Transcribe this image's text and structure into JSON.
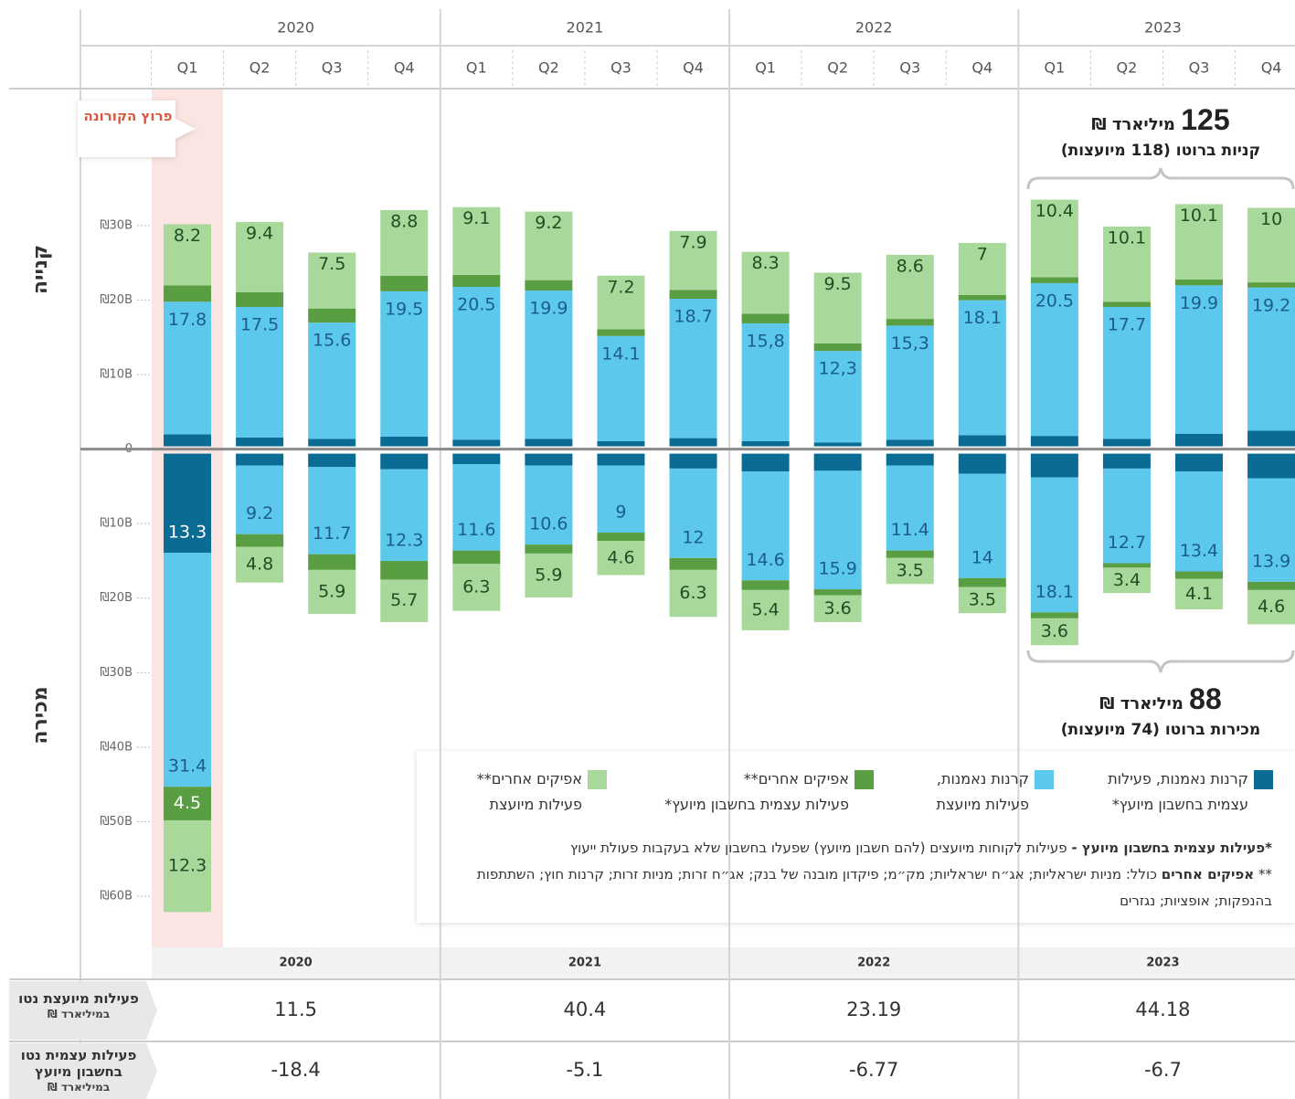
{
  "chart_data": {
    "type": "diverging_stacked_bar",
    "groups": [
      "2020",
      "2021",
      "2022",
      "2023"
    ],
    "categories": [
      "Q1",
      "Q2",
      "Q3",
      "Q4",
      "Q1",
      "Q2",
      "Q3",
      "Q4",
      "Q1",
      "Q2",
      "Q3",
      "Q4",
      "Q1",
      "Q2",
      "Q3",
      "Q4"
    ],
    "side_labels": {
      "buy": "קנייה",
      "sell": "מכירה"
    },
    "ylim": [
      -66,
      48
    ],
    "yticks": [
      {
        "value": 30,
        "label": "₪30B"
      },
      {
        "value": 20,
        "label": "₪20B"
      },
      {
        "value": 10,
        "label": "₪10B"
      },
      0,
      {
        "value": -10,
        "label": "₪10B"
      },
      {
        "value": -20,
        "label": "₪20B"
      },
      {
        "value": -30,
        "label": "₪30B"
      },
      {
        "value": -40,
        "label": "₪40B"
      },
      {
        "value": -50,
        "label": "₪50B"
      },
      {
        "value": -60,
        "label": "₪60B"
      }
    ],
    "series": [
      {
        "name": "קרנות נאמנות, פעילות\nעצמית בחשבון מיועץ*",
        "color": "#0a6b94",
        "label_color": "#ffffff",
        "values": [
          1.6,
          1.2,
          1.0,
          1.3,
          0.9,
          1.0,
          0.7,
          1.1,
          0.7,
          0.5,
          0.9,
          1.5,
          1.4,
          1.0,
          1.7,
          2.1
        ],
        "value_labels": [
          null,
          null,
          null,
          null,
          null,
          null,
          null,
          null,
          null,
          null,
          null,
          null,
          null,
          null,
          null,
          null
        ],
        "sell_values": [
          -13.3,
          -1.6,
          -1.8,
          -2.1,
          -1.4,
          -1.6,
          -1.6,
          -2.0,
          -2.4,
          -2.3,
          -1.6,
          -2.7,
          -3.2,
          -2.0,
          -2.4,
          -3.3
        ],
        "sell_value_labels": [
          "13.3",
          null,
          null,
          null,
          null,
          null,
          null,
          null,
          null,
          null,
          null,
          null,
          null,
          null,
          null,
          null
        ]
      },
      {
        "name": "קרנות נאמנות,\nפעילות מיועצת",
        "color": "#5bc8ec",
        "label_color": "#1b5e8a",
        "values": [
          17.8,
          17.5,
          15.6,
          19.5,
          20.5,
          19.9,
          14.1,
          18.7,
          15.8,
          12.3,
          15.3,
          18.1,
          20.5,
          17.7,
          19.9,
          19.2
        ],
        "value_labels": [
          "17.8",
          "17.5",
          "15.6",
          "19.5",
          "20.5",
          "19.9",
          "14.1",
          "18.7",
          "15,8",
          "12,3",
          "15,3",
          "18.1",
          "20.5",
          "17.7",
          "19.9",
          "19.2"
        ],
        "sell_values": [
          -31.4,
          -9.2,
          -11.7,
          -12.3,
          -11.6,
          -10.6,
          -9,
          -12,
          -14.6,
          -15.9,
          -11.4,
          -14,
          -18.1,
          -12.7,
          -13.4,
          -13.9
        ],
        "sell_value_labels": [
          "31.4",
          "9.2",
          "11.7",
          "12.3",
          "11.6",
          "10.6",
          "9",
          "12",
          "14.6",
          "15.9",
          "11.4",
          "14",
          "18.1",
          "12.7",
          "13.4",
          "13.9"
        ]
      },
      {
        "name": "אפיקים אחרים**\nפעילות עצמית בחשבון מיועץ*",
        "color": "#5a9e43",
        "label_color": "#ffffff",
        "values": [
          2.2,
          2.0,
          1.9,
          2.1,
          1.6,
          1.4,
          0.9,
          1.2,
          1.3,
          1.0,
          0.9,
          0.7,
          0.8,
          0.7,
          0.8,
          0.7
        ],
        "value_labels": [
          null,
          null,
          null,
          null,
          null,
          null,
          null,
          null,
          null,
          null,
          null,
          null,
          null,
          null,
          null,
          null
        ],
        "sell_values": [
          -4.5,
          -1.7,
          -2.1,
          -2.5,
          -1.8,
          -1.2,
          -1.1,
          -1.6,
          -1.3,
          -0.8,
          -1.0,
          -1.2,
          -0.8,
          -0.6,
          -1.0,
          -1.1
        ],
        "sell_value_labels": [
          "4.5",
          null,
          null,
          null,
          null,
          null,
          null,
          null,
          null,
          null,
          null,
          null,
          null,
          null,
          null,
          null
        ]
      },
      {
        "name": "אפיקים אחרים**\nפעילות מיועצת",
        "color": "#a9d99a",
        "label_color": "#234d23",
        "values": [
          8.2,
          9.4,
          7.5,
          8.8,
          9.1,
          9.2,
          7.2,
          7.9,
          8.3,
          9.5,
          8.6,
          7,
          10.4,
          10.1,
          10.1,
          10
        ],
        "value_labels": [
          "8.2",
          "9.4",
          "7.5",
          "8.8",
          "9.1",
          "9.2",
          "7.2",
          "7.9",
          "8.3",
          "9.5",
          "8.6",
          "7",
          "10.4",
          "10.1",
          "10.1",
          "10"
        ],
        "sell_values": [
          -12.3,
          -4.8,
          -5.9,
          -5.7,
          -6.3,
          -5.9,
          -4.6,
          -6.3,
          -5.4,
          -3.6,
          -3.5,
          -3.5,
          -3.6,
          -3.4,
          -4.1,
          -4.6
        ],
        "sell_value_labels": [
          "12.3",
          "4.8",
          "5.9",
          "5.7",
          "6.3",
          "5.9",
          "4.6",
          "6.3",
          "5.4",
          "3.6",
          "3.5",
          "3.5",
          "3.6",
          "3.4",
          "4.1",
          "4.6"
        ]
      }
    ],
    "annotations": {
      "corona": "פרוץ הקורונה",
      "buy_total": 125,
      "buy_unit": "מיליארד ₪",
      "buy_note": "קניות ברוטו (118 מיועצות)",
      "sell_total": 88,
      "sell_unit": "מיליארד ₪",
      "sell_note": "מכירות ברוטו (74 מיועצות)"
    },
    "notes": [
      {
        "term": "*פעילות עצמית בחשבון מיועץ -",
        "text": "פעילות לקוחות מיועצים (להם חשבון מיועץ) שפעלו בחשבון שלא בעקבות פעולת ייעוץ"
      },
      {
        "marker": "**",
        "term": "אפיקים אחרים",
        "text": "כולל: מניות ישראליות; אג״ח ישראליות; מק״מ; פיקדון מובנה של בנק; אג״ח זרות; מניות זרות; קרנות חוץ; השתתפות בהנפקות; אופציות; נגזרים"
      }
    ],
    "net_rows": [
      {
        "label": "פעילות מיועצת נטו",
        "unit": "במיליארד ₪",
        "values": [
          11.5,
          40.4,
          23.19,
          44.18
        ]
      },
      {
        "label": "פעילות עצמית נטו בחשבון מיועץ",
        "unit": "במיליארד ₪",
        "values": [
          -18.4,
          -5.1,
          -6.77,
          -6.7
        ]
      }
    ]
  }
}
